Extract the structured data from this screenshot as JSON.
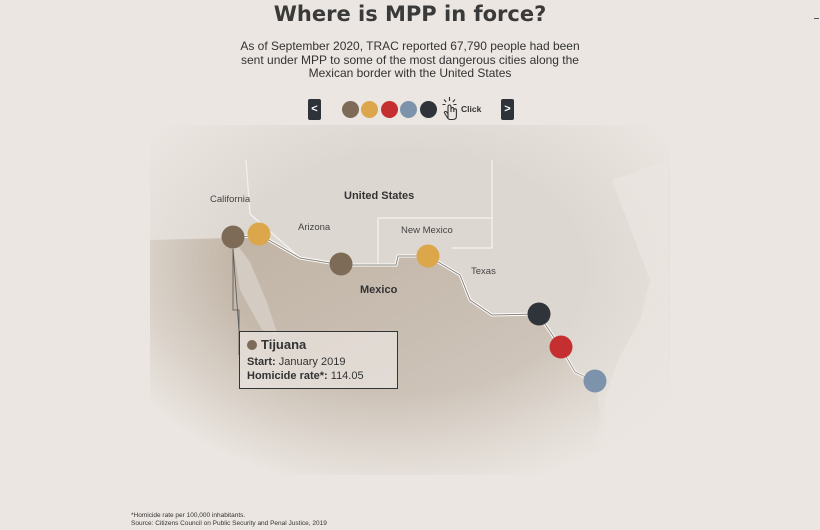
{
  "title": "Where is MPP in force?",
  "subtitle": "As of September 2020, TRAC reported 67,790 people had been sent under MPP to some of the most dangerous cities along the Mexican border with the United States",
  "nav": {
    "prev": "<",
    "next": ">",
    "click_label": "Click"
  },
  "dots": [
    {
      "color": "#7d6b58",
      "city": "Tijuana"
    },
    {
      "color": "#dba74a"
    },
    {
      "color": "#c62f2f"
    },
    {
      "color": "#7d93ac"
    },
    {
      "color": "#2f343a"
    }
  ],
  "map_labels": {
    "california": "California",
    "arizona": "Arizona",
    "new_mexico": "New Mexico",
    "texas": "Texas",
    "united_states": "United States",
    "mexico": "Mexico"
  },
  "tooltip": {
    "city": "Tijuana",
    "start_label": "Start:",
    "start_value": "January 2019",
    "homicide_label": "Homicide rate*:",
    "homicide_value": "114.05",
    "color": "#7d6b58"
  },
  "footnote": {
    "line1": "*Homicide rate per 100,000 inhabitants.",
    "line2": "Source: Citizens Council on Public Security and Penal Justice, 2019"
  },
  "colors": {
    "background": "#ebe6e1",
    "mexico_fill": "#c8bdb1",
    "us_fill": "#ddd7d1",
    "border": "#ffffff"
  }
}
